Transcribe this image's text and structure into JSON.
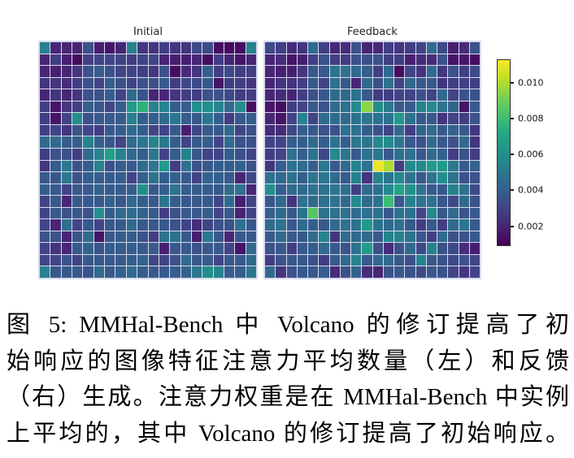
{
  "figure": {
    "caption_lines": [
      "图 5: MMHal-Bench 中 Volcano 的修订提高了初",
      "始响应的图像特征注意力平均数量（左）和反馈",
      "（右）生成。注意力权重是在 MMHal-Bench 中实例",
      "上平均的，其中 Volcano 的修订提高了初始响应。"
    ],
    "background_color": "#ffffff",
    "text_color": "#000000",
    "grid_line_color": "#d7d9ec"
  },
  "chart_data": [
    {
      "type": "heatmap",
      "title": "Initial",
      "rows": 20,
      "cols": 20,
      "colormap": "viridis",
      "value_scale": 0.001,
      "vmin": 0.0009,
      "vmax": 0.0113,
      "values": [
        [
          5.5,
          2.0,
          2.0,
          2.0,
          3.5,
          1.8,
          1.5,
          2.0,
          5.5,
          2.5,
          2.5,
          2.8,
          2.5,
          2.5,
          3.2,
          3.2,
          1.3,
          1.2,
          1.3,
          5.5
        ],
        [
          2.0,
          2.8,
          1.8,
          1.2,
          2.8,
          3.0,
          3.0,
          3.0,
          2.8,
          3.0,
          3.0,
          2.0,
          1.8,
          1.8,
          2.0,
          1.3,
          2.8,
          2.0,
          1.5,
          2.0
        ],
        [
          2.0,
          1.8,
          2.0,
          2.5,
          3.5,
          4.0,
          3.5,
          3.0,
          3.0,
          2.8,
          2.5,
          3.5,
          1.3,
          2.2,
          2.5,
          4.0,
          2.8,
          3.2,
          2.8,
          2.8
        ],
        [
          2.5,
          2.5,
          2.2,
          2.8,
          3.5,
          3.0,
          4.0,
          3.5,
          3.0,
          3.5,
          3.5,
          3.8,
          2.8,
          3.2,
          3.2,
          3.8,
          1.5,
          2.8,
          2.8,
          2.5
        ],
        [
          2.0,
          2.5,
          2.0,
          2.5,
          3.5,
          3.5,
          4.0,
          3.0,
          4.5,
          3.5,
          2.0,
          2.0,
          2.5,
          2.8,
          2.8,
          3.5,
          3.5,
          3.2,
          2.8,
          2.8
        ],
        [
          2.8,
          1.5,
          2.5,
          2.8,
          4.0,
          3.8,
          3.0,
          4.0,
          6.5,
          7.5,
          5.5,
          5.5,
          4.0,
          4.0,
          6.0,
          6.0,
          5.5,
          4.5,
          6.0,
          1.3
        ],
        [
          2.8,
          1.5,
          3.0,
          6.0,
          3.5,
          3.8,
          3.8,
          3.8,
          5.5,
          4.0,
          4.0,
          4.5,
          5.0,
          4.0,
          3.8,
          5.0,
          4.0,
          2.8,
          3.8,
          4.0
        ],
        [
          2.8,
          3.0,
          2.5,
          3.5,
          3.0,
          2.8,
          3.8,
          4.0,
          4.5,
          4.0,
          3.0,
          3.0,
          3.8,
          1.8,
          3.2,
          3.8,
          3.8,
          4.5,
          3.0,
          3.5
        ],
        [
          4.5,
          4.5,
          4.0,
          4.0,
          5.5,
          4.0,
          3.8,
          3.0,
          4.5,
          5.0,
          5.5,
          5.0,
          4.0,
          3.0,
          3.8,
          4.0,
          3.0,
          4.5,
          3.5,
          3.5
        ],
        [
          2.8,
          3.5,
          3.5,
          2.8,
          4.5,
          5.5,
          6.8,
          5.5,
          4.5,
          4.0,
          5.0,
          3.0,
          4.0,
          5.5,
          3.8,
          3.0,
          3.0,
          4.0,
          3.5,
          3.0
        ],
        [
          2.5,
          4.0,
          5.0,
          3.5,
          4.0,
          5.5,
          3.5,
          4.0,
          3.8,
          4.5,
          5.0,
          6.5,
          2.8,
          4.8,
          3.5,
          3.8,
          4.0,
          4.0,
          4.2,
          3.5
        ],
        [
          3.8,
          3.8,
          5.0,
          3.5,
          4.0,
          4.0,
          4.0,
          4.0,
          3.0,
          4.0,
          4.8,
          4.0,
          4.2,
          3.8,
          3.0,
          4.2,
          4.0,
          3.8,
          2.0,
          3.2
        ],
        [
          4.0,
          3.8,
          3.0,
          3.8,
          3.8,
          4.2,
          4.0,
          4.0,
          4.0,
          6.0,
          3.8,
          4.0,
          4.8,
          4.0,
          4.0,
          4.0,
          3.8,
          4.5,
          4.8,
          2.0
        ],
        [
          3.0,
          3.8,
          2.0,
          3.8,
          3.8,
          3.8,
          4.2,
          3.8,
          4.5,
          4.0,
          3.8,
          5.0,
          4.0,
          3.8,
          3.8,
          3.8,
          3.0,
          4.5,
          1.8,
          3.0
        ],
        [
          3.0,
          3.8,
          3.5,
          3.8,
          3.5,
          6.0,
          4.0,
          4.5,
          4.5,
          4.2,
          3.8,
          2.8,
          3.5,
          3.8,
          3.8,
          4.0,
          3.0,
          3.8,
          2.0,
          3.0
        ],
        [
          3.0,
          2.0,
          4.8,
          3.0,
          3.8,
          3.0,
          3.8,
          3.8,
          4.5,
          3.8,
          3.8,
          3.8,
          3.5,
          3.0,
          2.2,
          3.0,
          3.5,
          3.5,
          4.8,
          3.8
        ],
        [
          3.5,
          3.5,
          2.0,
          3.5,
          4.5,
          1.5,
          3.8,
          4.0,
          4.0,
          3.5,
          2.8,
          4.8,
          4.8,
          3.8,
          1.8,
          5.0,
          3.8,
          2.0,
          3.8,
          3.8
        ],
        [
          3.0,
          2.5,
          2.0,
          3.8,
          4.2,
          3.5,
          4.0,
          4.0,
          4.0,
          3.8,
          3.8,
          1.8,
          3.8,
          3.8,
          3.5,
          3.8,
          3.8,
          3.0,
          1.5,
          4.5
        ],
        [
          3.0,
          3.0,
          3.5,
          3.0,
          3.8,
          3.8,
          3.8,
          3.8,
          4.0,
          4.2,
          3.0,
          3.0,
          3.5,
          4.5,
          3.8,
          3.8,
          3.0,
          3.8,
          3.8,
          4.5
        ],
        [
          5.5,
          3.8,
          3.8,
          3.8,
          3.5,
          4.5,
          3.8,
          4.2,
          4.5,
          4.0,
          3.8,
          3.8,
          4.0,
          4.2,
          5.0,
          6.0,
          5.5,
          4.0,
          4.0,
          5.0
        ]
      ]
    },
    {
      "type": "heatmap",
      "title": "Feedback",
      "rows": 20,
      "cols": 20,
      "colormap": "viridis",
      "value_scale": 0.001,
      "vmin": 0.0009,
      "vmax": 0.0113,
      "values": [
        [
          3.2,
          2.8,
          2.2,
          2.5,
          4.5,
          2.8,
          2.0,
          2.2,
          3.5,
          2.0,
          2.2,
          2.8,
          2.5,
          2.8,
          3.0,
          4.5,
          3.2,
          1.8,
          2.2,
          3.5
        ],
        [
          2.0,
          2.2,
          1.5,
          1.8,
          2.8,
          3.5,
          2.8,
          2.8,
          3.5,
          3.5,
          3.5,
          2.8,
          2.8,
          1.8,
          2.2,
          2.2,
          3.5,
          1.5,
          1.5,
          1.3
        ],
        [
          2.0,
          1.8,
          1.8,
          2.5,
          3.8,
          3.8,
          4.8,
          4.8,
          4.5,
          4.0,
          2.8,
          4.5,
          1.3,
          3.0,
          2.5,
          4.5,
          2.5,
          3.5,
          2.8,
          3.2
        ],
        [
          2.0,
          2.5,
          2.5,
          2.8,
          3.8,
          3.0,
          4.8,
          3.8,
          2.0,
          4.5,
          3.5,
          4.8,
          3.0,
          4.5,
          3.8,
          3.8,
          2.5,
          2.8,
          2.8,
          2.8
        ],
        [
          2.0,
          2.2,
          2.0,
          2.8,
          3.5,
          3.8,
          4.5,
          4.5,
          4.8,
          3.8,
          2.8,
          2.8,
          3.0,
          3.0,
          3.5,
          3.0,
          4.5,
          3.0,
          3.5,
          3.5
        ],
        [
          1.5,
          1.3,
          2.8,
          3.0,
          3.8,
          3.5,
          4.5,
          4.8,
          5.8,
          9.5,
          6.0,
          5.0,
          3.8,
          3.8,
          5.5,
          5.8,
          4.8,
          4.2,
          1.5,
          3.8
        ],
        [
          2.0,
          1.5,
          3.0,
          5.5,
          3.0,
          4.5,
          4.5,
          4.5,
          4.8,
          5.0,
          4.8,
          4.8,
          6.5,
          4.8,
          3.8,
          3.8,
          2.5,
          3.0,
          2.8,
          3.5
        ],
        [
          2.2,
          2.2,
          3.2,
          4.0,
          3.8,
          3.5,
          3.5,
          4.8,
          4.8,
          4.0,
          3.5,
          3.0,
          4.5,
          2.8,
          4.2,
          4.5,
          3.8,
          4.2,
          3.8,
          2.5
        ],
        [
          3.0,
          3.0,
          4.0,
          4.0,
          4.5,
          4.0,
          4.8,
          4.0,
          5.0,
          5.0,
          5.8,
          5.8,
          5.0,
          3.8,
          3.5,
          4.5,
          3.8,
          3.5,
          4.5,
          2.5
        ],
        [
          2.8,
          3.0,
          4.8,
          4.0,
          4.8,
          3.2,
          5.8,
          5.0,
          3.8,
          4.8,
          5.0,
          3.8,
          4.8,
          4.8,
          3.8,
          4.5,
          4.2,
          2.8,
          3.5,
          2.8
        ],
        [
          2.5,
          4.0,
          4.8,
          4.5,
          4.0,
          5.0,
          3.8,
          4.5,
          5.5,
          4.8,
          11.0,
          10.0,
          2.8,
          5.8,
          5.8,
          6.5,
          6.5,
          5.0,
          3.8,
          4.2
        ],
        [
          4.8,
          4.5,
          4.8,
          4.0,
          5.0,
          5.0,
          4.5,
          4.0,
          5.5,
          2.5,
          5.5,
          5.0,
          5.8,
          4.8,
          3.8,
          4.8,
          6.0,
          4.8,
          3.5,
          3.5
        ],
        [
          6.0,
          4.0,
          4.5,
          4.5,
          4.8,
          4.8,
          5.0,
          4.8,
          2.8,
          4.5,
          4.8,
          5.8,
          7.0,
          6.2,
          4.8,
          3.8,
          3.8,
          5.5,
          4.8,
          3.2
        ],
        [
          3.8,
          4.5,
          2.5,
          4.8,
          4.5,
          4.8,
          4.8,
          4.5,
          5.8,
          4.5,
          4.8,
          8.0,
          3.8,
          5.5,
          4.8,
          4.8,
          3.8,
          3.2,
          4.5,
          3.5
        ],
        [
          4.0,
          4.5,
          3.8,
          4.8,
          8.5,
          4.8,
          4.8,
          4.8,
          4.5,
          4.8,
          4.8,
          3.8,
          4.8,
          4.8,
          3.0,
          5.8,
          3.8,
          4.5,
          3.5,
          3.8
        ],
        [
          4.5,
          4.8,
          3.8,
          4.5,
          4.0,
          3.8,
          4.5,
          4.8,
          4.8,
          6.5,
          4.8,
          4.5,
          4.8,
          3.8,
          2.8,
          3.8,
          2.8,
          4.5,
          5.0,
          3.8
        ],
        [
          3.8,
          4.5,
          3.8,
          3.8,
          4.5,
          5.5,
          2.5,
          4.5,
          4.5,
          4.5,
          3.8,
          5.5,
          5.5,
          4.8,
          3.8,
          2.8,
          4.5,
          3.5,
          3.5,
          3.8
        ],
        [
          3.5,
          3.8,
          2.8,
          3.8,
          4.0,
          4.5,
          3.8,
          3.5,
          4.8,
          6.5,
          3.5,
          2.2,
          3.5,
          4.5,
          3.2,
          5.5,
          3.5,
          3.2,
          2.2,
          1.8
        ],
        [
          2.8,
          3.5,
          3.8,
          3.8,
          3.5,
          2.8,
          3.8,
          4.5,
          5.5,
          3.8,
          4.5,
          4.5,
          3.8,
          3.5,
          5.5,
          3.8,
          3.5,
          3.2,
          3.5,
          3.0
        ],
        [
          4.5,
          2.5,
          3.5,
          3.8,
          3.8,
          4.0,
          2.2,
          3.5,
          4.2,
          2.2,
          2.0,
          3.5,
          3.8,
          3.5,
          3.2,
          3.8,
          3.5,
          3.0,
          2.5,
          3.0
        ]
      ]
    }
  ],
  "colorbar": {
    "colormap": "viridis",
    "vmin": 0.0009,
    "vmax": 0.0113,
    "tick_labels": [
      "0.010",
      "0.008",
      "0.006",
      "0.004",
      "0.002"
    ],
    "tick_values": [
      0.01,
      0.008,
      0.006,
      0.004,
      0.002
    ]
  }
}
